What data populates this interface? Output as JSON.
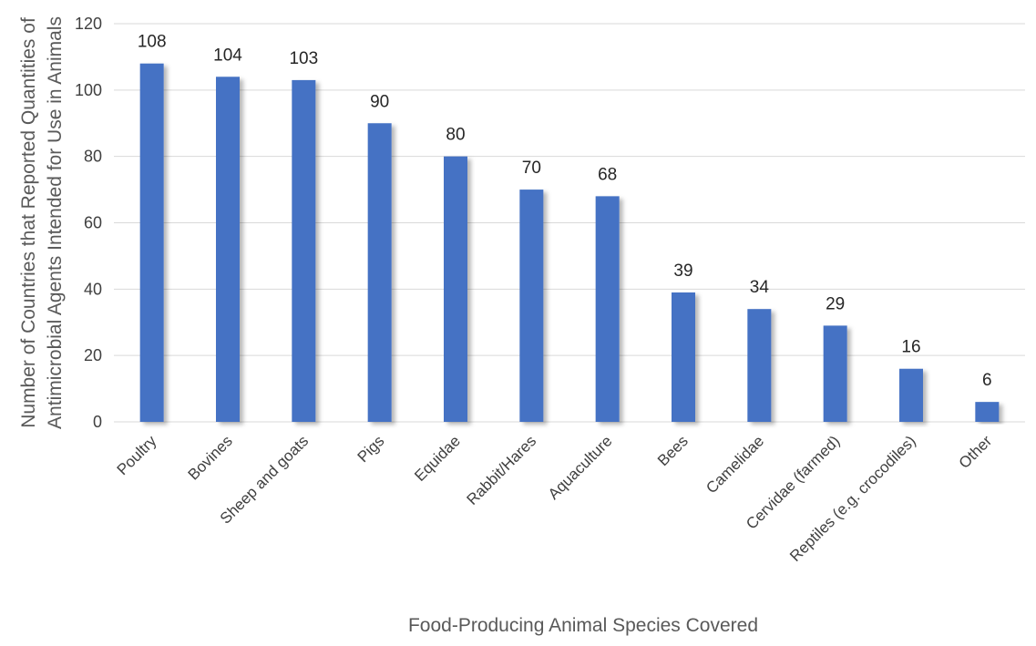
{
  "chart_data": {
    "type": "bar",
    "title": "",
    "xlabel": "Food-Producing Animal Species Covered",
    "ylabel_lines": [
      "Number of Countries that Reported Quantities of",
      "Antimicrobial Agents Intended for Use in Animals"
    ],
    "categories": [
      "Poultry",
      "Bovines",
      "Sheep and goats",
      "Pigs",
      "Equidae",
      "Rabbit/Hares",
      "Aquaculture",
      "Bees",
      "Camelidae",
      "Cervidae (farmed)",
      "Reptiles (e.g. crocodiles)",
      "Other"
    ],
    "values": [
      108,
      104,
      103,
      90,
      80,
      70,
      68,
      39,
      34,
      29,
      16,
      6
    ],
    "ylim": [
      0,
      120
    ],
    "yticks": [
      0,
      20,
      40,
      60,
      80,
      100,
      120
    ],
    "grid": true,
    "legend": "none",
    "bar_color": "#4472C4",
    "grid_color": "#D9D9D9"
  }
}
